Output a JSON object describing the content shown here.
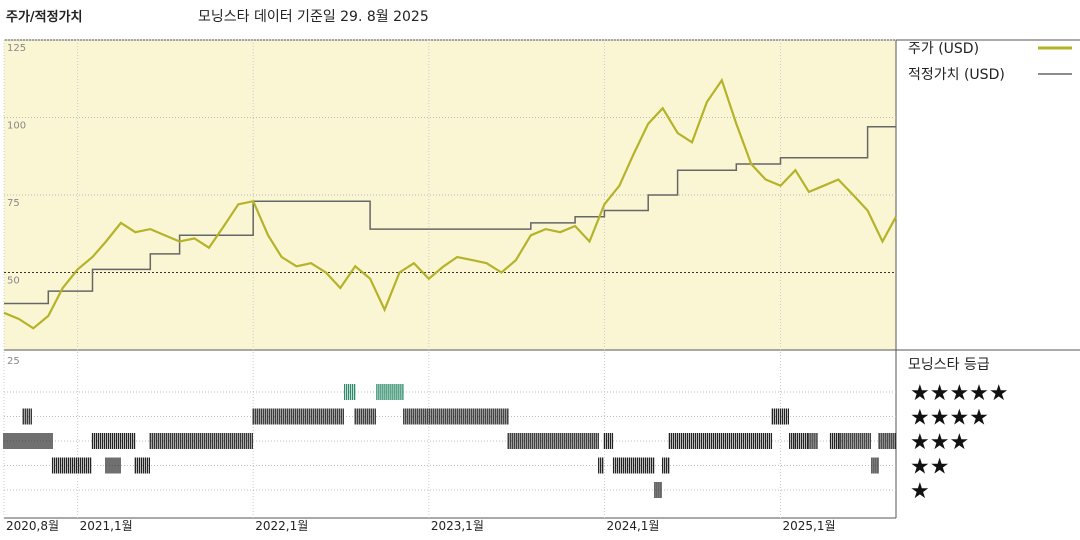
{
  "header": {
    "title": "주가/적정가치",
    "subtitle": "모닝스타 데이터 기준일 29. 8월 2025"
  },
  "legend": {
    "price_label": "주가 (USD)",
    "fair_label": "적정가치 (USD)",
    "rating_title": "모닝스타 등급"
  },
  "colors": {
    "price": "#B5B32A",
    "fair": "#666666",
    "plot_bg": "#FAF6D4",
    "rating_bar": "#222222",
    "rating_bar_5": "#2E8B6A"
  },
  "chart_data": [
    {
      "type": "line",
      "xlim": [
        "2020-08-01",
        "2025-08-29"
      ],
      "ylim": [
        25,
        125
      ],
      "yticks": [
        50,
        75,
        100,
        125
      ],
      "xticks": [
        {
          "date": "2020-08-01",
          "label": "2020,8월"
        },
        {
          "date": "2021-01-01",
          "label": "2021,1월"
        },
        {
          "date": "2022-01-01",
          "label": "2022,1월"
        },
        {
          "date": "2023-01-01",
          "label": "2023,1월"
        },
        {
          "date": "2024-01-01",
          "label": "2024,1월"
        },
        {
          "date": "2025-01-01",
          "label": "2025,1월"
        }
      ],
      "series": [
        {
          "name": "주가 (USD)",
          "x": [
            "2020-08-01",
            "2020-09-01",
            "2020-10-01",
            "2020-11-01",
            "2020-12-01",
            "2021-01-01",
            "2021-02-01",
            "2021-03-01",
            "2021-04-01",
            "2021-05-01",
            "2021-06-01",
            "2021-07-01",
            "2021-08-01",
            "2021-09-01",
            "2021-10-01",
            "2021-11-01",
            "2021-12-01",
            "2022-01-01",
            "2022-02-01",
            "2022-03-01",
            "2022-04-01",
            "2022-05-01",
            "2022-06-01",
            "2022-07-01",
            "2022-08-01",
            "2022-09-01",
            "2022-10-01",
            "2022-11-01",
            "2022-12-01",
            "2023-01-01",
            "2023-02-01",
            "2023-03-01",
            "2023-04-01",
            "2023-05-01",
            "2023-06-01",
            "2023-07-01",
            "2023-08-01",
            "2023-09-01",
            "2023-10-01",
            "2023-11-01",
            "2023-12-01",
            "2024-01-01",
            "2024-02-01",
            "2024-03-01",
            "2024-04-01",
            "2024-05-01",
            "2024-06-01",
            "2024-07-01",
            "2024-08-01",
            "2024-09-01",
            "2024-10-01",
            "2024-11-01",
            "2024-12-01",
            "2025-01-01",
            "2025-02-01",
            "2025-03-01",
            "2025-04-01",
            "2025-05-01",
            "2025-06-01",
            "2025-07-01",
            "2025-08-01",
            "2025-08-29"
          ],
          "y": [
            37,
            35,
            32,
            36,
            45,
            51,
            55,
            60,
            66,
            63,
            64,
            62,
            60,
            61,
            58,
            65,
            72,
            73,
            62,
            55,
            52,
            53,
            50,
            45,
            52,
            48,
            38,
            50,
            53,
            48,
            52,
            55,
            54,
            53,
            50,
            54,
            62,
            64,
            63,
            65,
            60,
            72,
            78,
            88,
            98,
            103,
            95,
            92,
            105,
            112,
            98,
            85,
            80,
            78,
            83,
            76,
            78,
            80,
            75,
            70,
            60,
            68
          ]
        },
        {
          "name": "적정가치 (USD)",
          "x": [
            "2020-08-01",
            "2020-11-01",
            "2020-11-01",
            "2021-02-01",
            "2021-02-01",
            "2021-06-01",
            "2021-06-01",
            "2021-08-01",
            "2021-08-01",
            "2022-01-01",
            "2022-01-01",
            "2022-09-01",
            "2022-09-01",
            "2023-08-01",
            "2023-08-01",
            "2023-11-01",
            "2023-11-01",
            "2024-01-01",
            "2024-01-01",
            "2024-04-01",
            "2024-04-01",
            "2024-06-01",
            "2024-06-01",
            "2024-10-01",
            "2024-10-01",
            "2025-01-01",
            "2025-01-01",
            "2025-07-01",
            "2025-07-01",
            "2025-08-29"
          ],
          "y": [
            40,
            40,
            44,
            44,
            51,
            51,
            56,
            56,
            62,
            62,
            73,
            73,
            64,
            64,
            66,
            66,
            68,
            68,
            70,
            70,
            75,
            75,
            83,
            83,
            85,
            85,
            87,
            87,
            97,
            97
          ]
        }
      ]
    },
    {
      "type": "table",
      "title": "모닝스타 등급",
      "rows": [
        "★★★★★",
        "★★★★",
        "★★★",
        "★★",
        "★"
      ],
      "ratings": [
        {
          "from": "2020-08-01",
          "to": "2020-11-10",
          "stars": 3
        },
        {
          "from": "2020-09-10",
          "to": "2020-09-28",
          "stars": 4
        },
        {
          "from": "2020-11-10",
          "to": "2021-02-01",
          "stars": 2
        },
        {
          "from": "2021-02-01",
          "to": "2021-05-01",
          "stars": 3
        },
        {
          "from": "2021-03-01",
          "to": "2021-04-01",
          "stars": 2
        },
        {
          "from": "2021-05-01",
          "to": "2021-06-01",
          "stars": 2
        },
        {
          "from": "2021-06-01",
          "to": "2022-01-01",
          "stars": 3
        },
        {
          "from": "2022-01-01",
          "to": "2022-07-10",
          "stars": 4
        },
        {
          "from": "2022-07-10",
          "to": "2022-08-01",
          "stars": 5
        },
        {
          "from": "2022-08-01",
          "to": "2022-09-15",
          "stars": 4
        },
        {
          "from": "2022-09-15",
          "to": "2022-11-10",
          "stars": 5
        },
        {
          "from": "2022-11-10",
          "to": "2023-06-15",
          "stars": 4
        },
        {
          "from": "2023-06-15",
          "to": "2023-12-20",
          "stars": 3
        },
        {
          "from": "2023-12-20",
          "to": "2024-01-01",
          "stars": 2
        },
        {
          "from": "2024-01-01",
          "to": "2024-01-20",
          "stars": 3
        },
        {
          "from": "2024-01-20",
          "to": "2024-04-15",
          "stars": 2
        },
        {
          "from": "2024-04-15",
          "to": "2024-05-01",
          "stars": 1
        },
        {
          "from": "2024-05-01",
          "to": "2024-05-15",
          "stars": 2
        },
        {
          "from": "2024-05-15",
          "to": "2024-12-15",
          "stars": 3
        },
        {
          "from": "2024-12-15",
          "to": "2025-01-20",
          "stars": 4
        },
        {
          "from": "2025-01-20",
          "to": "2025-02-01",
          "stars": 3
        },
        {
          "from": "2025-02-01",
          "to": "2025-03-01",
          "stars": 3
        },
        {
          "from": "2025-03-01",
          "to": "2025-03-20",
          "stars": 3
        },
        {
          "from": "2025-04-15",
          "to": "2025-05-05",
          "stars": 3
        },
        {
          "from": "2025-05-05",
          "to": "2025-07-10",
          "stars": 3
        },
        {
          "from": "2025-07-10",
          "to": "2025-07-25",
          "stars": 2
        },
        {
          "from": "2025-07-25",
          "to": "2025-08-29",
          "stars": 3
        }
      ]
    }
  ]
}
